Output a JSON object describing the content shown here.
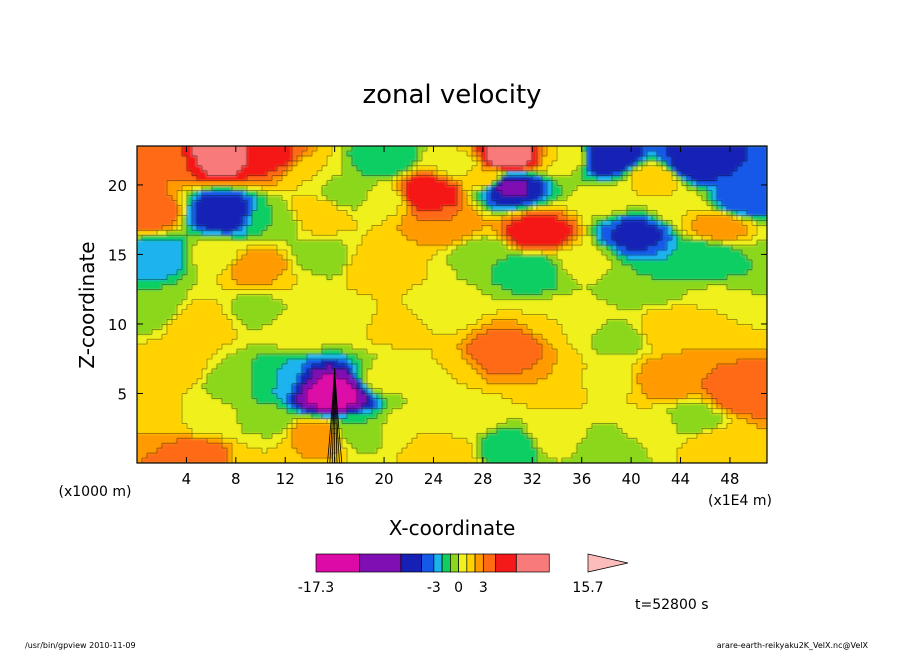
{
  "chart_data": {
    "type": "heatmap",
    "title": "zonal velocity",
    "xlabel": "X-coordinate",
    "ylabel": "Z-coordinate",
    "x_units": "(x1E4 m)",
    "y_units": "(x1000 m)",
    "xlim": [
      0,
      51
    ],
    "ylim": [
      0,
      22.8
    ],
    "x_ticks": [
      "4",
      "8",
      "12",
      "16",
      "20",
      "24",
      "28",
      "32",
      "36",
      "40",
      "44",
      "48"
    ],
    "x_tick_values": [
      4,
      8,
      12,
      16,
      20,
      24,
      28,
      32,
      36,
      40,
      44,
      48
    ],
    "y_ticks": [
      "5",
      "10",
      "15",
      "20"
    ],
    "y_tick_values": [
      5,
      10,
      15,
      20
    ],
    "colorbar": {
      "colors": [
        "#dd0aa8",
        "#7f0fb2",
        "#1720b5",
        "#1559e8",
        "#1ab3ee",
        "#11ce62",
        "#8bd71f",
        "#f0f11d",
        "#ffd200",
        "#ff9b00",
        "#ff6a12",
        "#f51919",
        "#f87a7a",
        "#fcbcbc"
      ],
      "labels": [
        "-17.3",
        "-3",
        "0",
        "3",
        "15.7"
      ],
      "label_values": [
        -17.3,
        -3,
        0,
        3,
        15.7
      ],
      "vmin": -17.3,
      "vmax": 15.7
    },
    "grid": false,
    "legend": "colorbar below plot",
    "regions": [
      {
        "x": 1.5,
        "z": 21.5,
        "value": 3
      },
      {
        "x": 7,
        "z": 22,
        "value": 8
      },
      {
        "x": 11,
        "z": 22,
        "value": 5
      },
      {
        "x": 14,
        "z": 21,
        "value": 1
      },
      {
        "x": 17,
        "z": 19.5,
        "value": -1
      },
      {
        "x": 20,
        "z": 19,
        "value": 0.5
      },
      {
        "x": 23.5,
        "z": 19.5,
        "value": 7
      },
      {
        "x": 28.5,
        "z": 20.5,
        "value": 2
      },
      {
        "x": 30,
        "z": 22,
        "value": 9
      },
      {
        "x": 30,
        "z": 20,
        "value": -8
      },
      {
        "x": 35,
        "z": 22,
        "value": 1
      },
      {
        "x": 38,
        "z": 22,
        "value": -7
      },
      {
        "x": 42,
        "z": 20.5,
        "value": 2
      },
      {
        "x": 45,
        "z": 21.5,
        "value": -6
      },
      {
        "x": 49,
        "z": 19,
        "value": -4
      },
      {
        "x": 1,
        "z": 18,
        "value": 4
      },
      {
        "x": 7,
        "z": 18,
        "value": -6
      },
      {
        "x": 11,
        "z": 17.5,
        "value": -1
      },
      {
        "x": 14.5,
        "z": 18,
        "value": 2
      },
      {
        "x": 25,
        "z": 17,
        "value": 3
      },
      {
        "x": 32.5,
        "z": 16.5,
        "value": 6
      },
      {
        "x": 40.5,
        "z": 16.5,
        "value": -5
      },
      {
        "x": 47,
        "z": 17,
        "value": 3
      },
      {
        "x": 2,
        "z": 15,
        "value": -3
      },
      {
        "x": 6,
        "z": 15,
        "value": 0.5
      },
      {
        "x": 10,
        "z": 14,
        "value": 3
      },
      {
        "x": 13,
        "z": 13,
        "value": 1
      },
      {
        "x": 15,
        "z": 14.5,
        "value": -1
      },
      {
        "x": 19,
        "z": 14,
        "value": 2
      },
      {
        "x": 22,
        "z": 14,
        "value": 1
      },
      {
        "x": 28,
        "z": 15,
        "value": -1
      },
      {
        "x": 32,
        "z": 14,
        "value": -2
      },
      {
        "x": 36,
        "z": 14.5,
        "value": 0.5
      },
      {
        "x": 41,
        "z": 13,
        "value": -1
      },
      {
        "x": 46,
        "z": 15,
        "value": -2
      },
      {
        "x": 50,
        "z": 14,
        "value": -1
      },
      {
        "x": 1,
        "z": 11,
        "value": -1
      },
      {
        "x": 5,
        "z": 10,
        "value": 2
      },
      {
        "x": 10,
        "z": 11,
        "value": -0.5
      },
      {
        "x": 13,
        "z": 10,
        "value": 1
      },
      {
        "x": 17,
        "z": 10.5,
        "value": 0.5
      },
      {
        "x": 21,
        "z": 10,
        "value": 1.5
      },
      {
        "x": 24.5,
        "z": 11,
        "value": 0.5
      },
      {
        "x": 30,
        "z": 8,
        "value": 4
      },
      {
        "x": 35,
        "z": 10,
        "value": 1
      },
      {
        "x": 39,
        "z": 9,
        "value": -0.5
      },
      {
        "x": 43,
        "z": 9.5,
        "value": 2
      },
      {
        "x": 47.5,
        "z": 11,
        "value": 1
      },
      {
        "x": 3,
        "z": 7,
        "value": 2
      },
      {
        "x": 8,
        "z": 6,
        "value": -0.5
      },
      {
        "x": 11,
        "z": 6,
        "value": -2
      },
      {
        "x": 16,
        "z": 5,
        "value": -15
      },
      {
        "x": 20,
        "z": 6,
        "value": 0.5
      },
      {
        "x": 24,
        "z": 6.5,
        "value": 1
      },
      {
        "x": 34,
        "z": 6,
        "value": 2
      },
      {
        "x": 38,
        "z": 6,
        "value": 0.5
      },
      {
        "x": 43,
        "z": 6,
        "value": 3
      },
      {
        "x": 49,
        "z": 5,
        "value": 4
      },
      {
        "x": 1,
        "z": 3,
        "value": 2
      },
      {
        "x": 6,
        "z": 3,
        "value": 0.5
      },
      {
        "x": 10.5,
        "z": 3,
        "value": -0.5
      },
      {
        "x": 14.5,
        "z": 2,
        "value": 3
      },
      {
        "x": 18,
        "z": 2.5,
        "value": -1
      },
      {
        "x": 22,
        "z": 2.5,
        "value": 1
      },
      {
        "x": 27,
        "z": 3,
        "value": 0.5
      },
      {
        "x": 30,
        "z": 1.2,
        "value": -2
      },
      {
        "x": 34,
        "z": 2,
        "value": 1
      },
      {
        "x": 38,
        "z": 1.2,
        "value": -1
      },
      {
        "x": 42,
        "z": 2.5,
        "value": 1
      },
      {
        "x": 47,
        "z": 1.5,
        "value": 2
      },
      {
        "x": 5,
        "z": 0.6,
        "value": 4
      },
      {
        "x": 10,
        "z": 0.6,
        "value": 1
      },
      {
        "x": 25,
        "z": 0.6,
        "value": 2
      },
      {
        "x": 45,
        "z": 3,
        "value": -1
      },
      {
        "x": 26,
        "z": 21.5,
        "value": 0.5
      },
      {
        "x": 20,
        "z": 21.8,
        "value": -2
      },
      {
        "x": 38,
        "z": 19,
        "value": 0.5
      },
      {
        "x": 44,
        "z": 18.5,
        "value": 1
      }
    ]
  },
  "time_label": "t=52800 s",
  "footer": {
    "left": "/usr/bin/gpview   2010-11-09",
    "right": "arare-earth-reikyaku2K_VelX.nc@VelX"
  }
}
